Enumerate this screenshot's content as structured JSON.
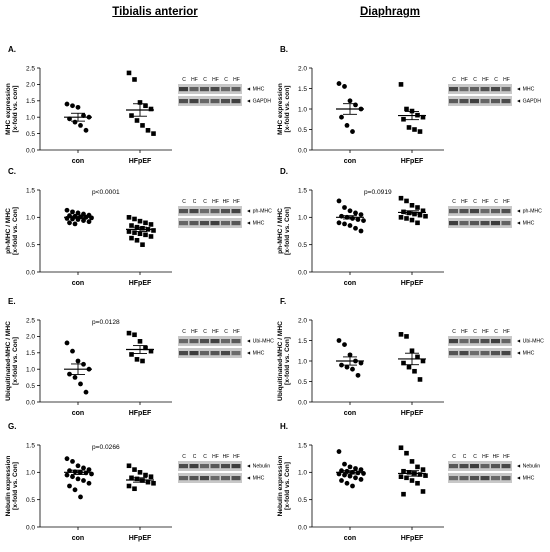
{
  "columns": {
    "left": "Tibialis anterior",
    "right": "Diaphragm"
  },
  "chart_data": [
    {
      "type": "scatter",
      "panel": "A.",
      "ylabel": [
        "MHC expression",
        "[x-fold vs. con]"
      ],
      "ylim": [
        0,
        2.5
      ],
      "yticks": [
        "0.0",
        "0.5",
        "1.0",
        "1.5",
        "2.0",
        "2.5"
      ],
      "categories": [
        "con",
        "HFpEF"
      ],
      "pvalue": "",
      "groups": [
        {
          "marker": "circle",
          "mean": 1.0,
          "sem": 0.12,
          "values": [
            1.4,
            1.35,
            1.3,
            1.05,
            1.0,
            0.95,
            0.85,
            0.75,
            0.6
          ]
        },
        {
          "marker": "square",
          "mean": 1.22,
          "sem": 0.19,
          "values": [
            2.35,
            2.15,
            1.45,
            1.35,
            1.25,
            1.05,
            0.9,
            0.75,
            0.6,
            0.5
          ]
        }
      ],
      "blot": {
        "lanes": [
          "C",
          "HF",
          "C",
          "HF",
          "C",
          "HF"
        ],
        "bands": [
          "MHC",
          "GAPDH"
        ]
      }
    },
    {
      "type": "scatter",
      "panel": "B.",
      "ylabel": [
        "MHC expression",
        "[x-fold vs. con]"
      ],
      "ylim": [
        0,
        2.0
      ],
      "yticks": [
        "0.0",
        "0.5",
        "1.0",
        "1.5",
        "2.0"
      ],
      "categories": [
        "con",
        "HFpEF"
      ],
      "pvalue": "",
      "groups": [
        {
          "marker": "circle",
          "mean": 1.0,
          "sem": 0.13,
          "values": [
            1.62,
            1.55,
            1.2,
            1.1,
            1.0,
            0.8,
            0.6,
            0.45
          ]
        },
        {
          "marker": "square",
          "mean": 0.84,
          "sem": 0.1,
          "values": [
            1.6,
            1.0,
            0.95,
            0.85,
            0.8,
            0.75,
            0.55,
            0.5,
            0.45
          ]
        }
      ],
      "blot": {
        "lanes": [
          "C",
          "HF",
          "C",
          "HF",
          "C",
          "HF"
        ],
        "bands": [
          "MHC",
          "GAPDH"
        ]
      }
    },
    {
      "type": "scatter",
      "panel": "C.",
      "ylabel": [
        "ph-MHC / MHC",
        "[x-fold vs. Con]"
      ],
      "ylim": [
        0,
        1.5
      ],
      "yticks": [
        "0.0",
        "0.5",
        "1.0",
        "1.5"
      ],
      "categories": [
        "con",
        "HFpEF"
      ],
      "pvalue": "p<0.0001",
      "groups": [
        {
          "marker": "circle",
          "mean": 1.0,
          "sem": 0.02,
          "values": [
            1.13,
            1.1,
            1.08,
            1.06,
            1.04,
            1.03,
            1.02,
            1.01,
            1.0,
            0.99,
            0.98,
            0.97,
            0.96,
            0.94,
            0.92,
            0.9,
            0.88
          ]
        },
        {
          "marker": "square",
          "mean": 0.78,
          "sem": 0.04,
          "values": [
            1.0,
            0.97,
            0.93,
            0.9,
            0.87,
            0.85,
            0.82,
            0.8,
            0.78,
            0.76,
            0.74,
            0.72,
            0.7,
            0.68,
            0.65,
            0.62,
            0.58,
            0.5
          ]
        }
      ],
      "blot": {
        "lanes": [
          "C",
          "C",
          "C",
          "HF",
          "HF",
          "HF"
        ],
        "bands": [
          "ph-MHC",
          "MHC"
        ]
      }
    },
    {
      "type": "scatter",
      "panel": "D.",
      "ylabel": [
        "ph-MHC / MHC",
        "[x-fold vs. Con]"
      ],
      "ylim": [
        0,
        1.5
      ],
      "yticks": [
        "0.0",
        "0.5",
        "1.0",
        "1.5"
      ],
      "categories": [
        "con",
        "HFpEF"
      ],
      "pvalue": "p=0.0919",
      "groups": [
        {
          "marker": "circle",
          "mean": 1.0,
          "sem": 0.03,
          "values": [
            1.3,
            1.18,
            1.12,
            1.08,
            1.05,
            1.02,
            1.0,
            0.98,
            0.96,
            0.94,
            0.9,
            0.88,
            0.85,
            0.8,
            0.75
          ]
        },
        {
          "marker": "square",
          "mean": 1.09,
          "sem": 0.03,
          "values": [
            1.35,
            1.3,
            1.22,
            1.18,
            1.12,
            1.1,
            1.08,
            1.06,
            1.04,
            1.02,
            1.0,
            0.98,
            0.95,
            0.9
          ]
        }
      ],
      "blot": {
        "lanes": [
          "C",
          "HF",
          "C",
          "HF",
          "C",
          "HF"
        ],
        "bands": [
          "ph-MHC",
          "MHC"
        ]
      }
    },
    {
      "type": "scatter",
      "panel": "E.",
      "ylabel": [
        "Ubiquitinated-MHC / MHC",
        "[x-fold vs. Con]"
      ],
      "ylim": [
        0,
        2.5
      ],
      "yticks": [
        "0.0",
        "0.5",
        "1.0",
        "1.5",
        "2.0",
        "2.5"
      ],
      "categories": [
        "con",
        "HFpEF"
      ],
      "pvalue": "p=0.0128",
      "groups": [
        {
          "marker": "circle",
          "mean": 1.0,
          "sem": 0.16,
          "values": [
            1.8,
            1.55,
            1.25,
            1.15,
            1.0,
            0.85,
            0.75,
            0.55,
            0.3
          ]
        },
        {
          "marker": "square",
          "mean": 1.6,
          "sem": 0.12,
          "values": [
            2.1,
            2.05,
            1.85,
            1.65,
            1.55,
            1.45,
            1.3,
            1.25
          ]
        }
      ],
      "blot": {
        "lanes": [
          "C",
          "HF",
          "C",
          "HF",
          "C",
          "HF"
        ],
        "bands": [
          "Ubi-MHC",
          "MHC"
        ]
      }
    },
    {
      "type": "scatter",
      "panel": "F.",
      "ylabel": [
        "Ubiquitinated-MHC / MHC",
        "[x-fold vs. Con]"
      ],
      "ylim": [
        0,
        2.0
      ],
      "yticks": [
        "0.0",
        "0.5",
        "1.0",
        "1.5",
        "2.0"
      ],
      "categories": [
        "con",
        "HFpEF"
      ],
      "pvalue": "",
      "groups": [
        {
          "marker": "circle",
          "mean": 1.0,
          "sem": 0.1,
          "values": [
            1.5,
            1.4,
            1.15,
            1.0,
            0.95,
            0.9,
            0.85,
            0.8,
            0.65
          ]
        },
        {
          "marker": "square",
          "mean": 1.05,
          "sem": 0.14,
          "values": [
            1.65,
            1.6,
            1.25,
            1.1,
            1.0,
            0.95,
            0.85,
            0.75,
            0.55
          ]
        }
      ],
      "blot": {
        "lanes": [
          "C",
          "HF",
          "C",
          "HF",
          "C",
          "HF"
        ],
        "bands": [
          "Ubi-MHC",
          "MHC"
        ]
      }
    },
    {
      "type": "scatter",
      "panel": "G.",
      "ylabel": [
        "Nebulin expression",
        "[x-fold vs. Con]"
      ],
      "ylim": [
        0,
        1.5
      ],
      "yticks": [
        "0.0",
        "0.5",
        "1.0",
        "1.5"
      ],
      "categories": [
        "con",
        "HFpEF"
      ],
      "pvalue": "p=0.0266",
      "groups": [
        {
          "marker": "circle",
          "mean": 1.0,
          "sem": 0.04,
          "values": [
            1.25,
            1.2,
            1.12,
            1.08,
            1.05,
            1.03,
            1.01,
            1.0,
            0.99,
            0.97,
            0.95,
            0.92,
            0.88,
            0.85,
            0.8,
            0.75,
            0.68,
            0.55
          ]
        },
        {
          "marker": "square",
          "mean": 0.86,
          "sem": 0.04,
          "values": [
            1.12,
            1.05,
            1.0,
            0.95,
            0.92,
            0.9,
            0.88,
            0.85,
            0.82,
            0.8,
            0.75,
            0.7
          ]
        }
      ],
      "blot": {
        "lanes": [
          "C",
          "C",
          "C",
          "HF",
          "HF",
          "HF"
        ],
        "bands": [
          "Nebulin",
          "MHC"
        ]
      }
    },
    {
      "type": "scatter",
      "panel": "H.",
      "ylabel": [
        "Nebulin expression",
        "[x-fold vs. Con]"
      ],
      "ylim": [
        0,
        1.5
      ],
      "yticks": [
        "0.0",
        "0.5",
        "1.0",
        "1.5"
      ],
      "categories": [
        "con",
        "HFpEF"
      ],
      "pvalue": "",
      "groups": [
        {
          "marker": "circle",
          "mean": 1.0,
          "sem": 0.03,
          "values": [
            1.38,
            1.15,
            1.1,
            1.07,
            1.05,
            1.03,
            1.02,
            1.0,
            0.99,
            0.98,
            0.97,
            0.95,
            0.93,
            0.9,
            0.87,
            0.85,
            0.8,
            0.75
          ]
        },
        {
          "marker": "square",
          "mean": 0.98,
          "sem": 0.05,
          "values": [
            1.45,
            1.35,
            1.2,
            1.1,
            1.05,
            1.02,
            1.0,
            0.98,
            0.96,
            0.94,
            0.92,
            0.9,
            0.85,
            0.8,
            0.65,
            0.6
          ]
        }
      ],
      "blot": {
        "lanes": [
          "C",
          "C",
          "C",
          "HF",
          "HF",
          "HF"
        ],
        "bands": [
          "Nebulin",
          "MHC"
        ]
      }
    }
  ]
}
